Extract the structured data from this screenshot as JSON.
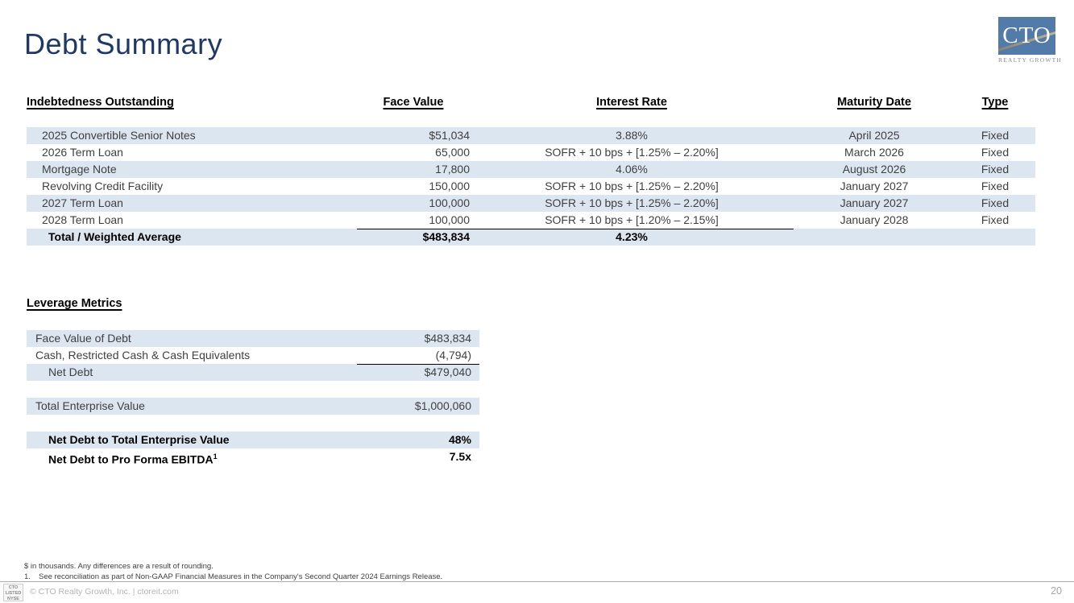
{
  "slide": {
    "title": "Debt Summary"
  },
  "logo": {
    "text": "CTO",
    "subtext": "REALTY GROWTH"
  },
  "debt_table": {
    "headers": {
      "name": "Indebtedness Outstanding",
      "face_value": "Face Value",
      "interest_rate": "Interest Rate",
      "maturity_date": "Maturity Date",
      "type": "Type"
    },
    "rows": [
      {
        "name": "2025 Convertible Senior Notes",
        "face_value": "$51,034",
        "interest_rate": "3.88%",
        "maturity_date": "April 2025",
        "type": "Fixed"
      },
      {
        "name": "2026 Term Loan",
        "face_value": "65,000",
        "interest_rate": "SOFR + 10 bps + [1.25% – 2.20%]",
        "maturity_date": "March 2026",
        "type": "Fixed"
      },
      {
        "name": "Mortgage Note",
        "face_value": "17,800",
        "interest_rate": "4.06%",
        "maturity_date": "August 2026",
        "type": "Fixed"
      },
      {
        "name": "Revolving Credit Facility",
        "face_value": "150,000",
        "interest_rate": "SOFR + 10 bps + [1.25% – 2.20%]",
        "maturity_date": "January 2027",
        "type": "Fixed"
      },
      {
        "name": "2027 Term Loan",
        "face_value": "100,000",
        "interest_rate": "SOFR + 10 bps + [1.25% – 2.20%]",
        "maturity_date": "January 2027",
        "type": "Fixed"
      },
      {
        "name": "2028 Term Loan",
        "face_value": "100,000",
        "interest_rate": "SOFR + 10 bps + [1.20% – 2.15%]",
        "maturity_date": "January 2028",
        "type": "Fixed"
      }
    ],
    "total_row": {
      "name": "Total / Weighted Average",
      "face_value": "$483,834",
      "interest_rate": "4.23%"
    }
  },
  "leverage": {
    "heading": "Leverage Metrics",
    "rows": [
      {
        "label": "Face Value of Debt",
        "value": "$483,834"
      },
      {
        "label": "Cash, Restricted Cash & Cash Equivalents",
        "value": "(4,794)"
      },
      {
        "label": "Net Debt",
        "value": "$479,040"
      },
      {
        "label": "Total Enterprise Value",
        "value": "$1,000,060"
      },
      {
        "label": "Net Debt to Total Enterprise Value",
        "value": "48%"
      },
      {
        "label": "Net Debt to Pro Forma EBITDA",
        "superscript": "1",
        "value": "7.5x"
      }
    ]
  },
  "footnotes": {
    "line1": "$ in thousands. Any differences are a result of rounding.",
    "line2_number": "1.",
    "line2_text": "See reconciliation as part of Non-GAAP Financial Measures in the Company's Second Quarter 2024 Earnings Release."
  },
  "footer": {
    "mini_logo": {
      "line1": "CTO",
      "line2": "LISTED",
      "line3": "NYSE"
    },
    "copyright": "© CTO Realty Growth, Inc. | ctoreit.com",
    "page_number": "20"
  }
}
